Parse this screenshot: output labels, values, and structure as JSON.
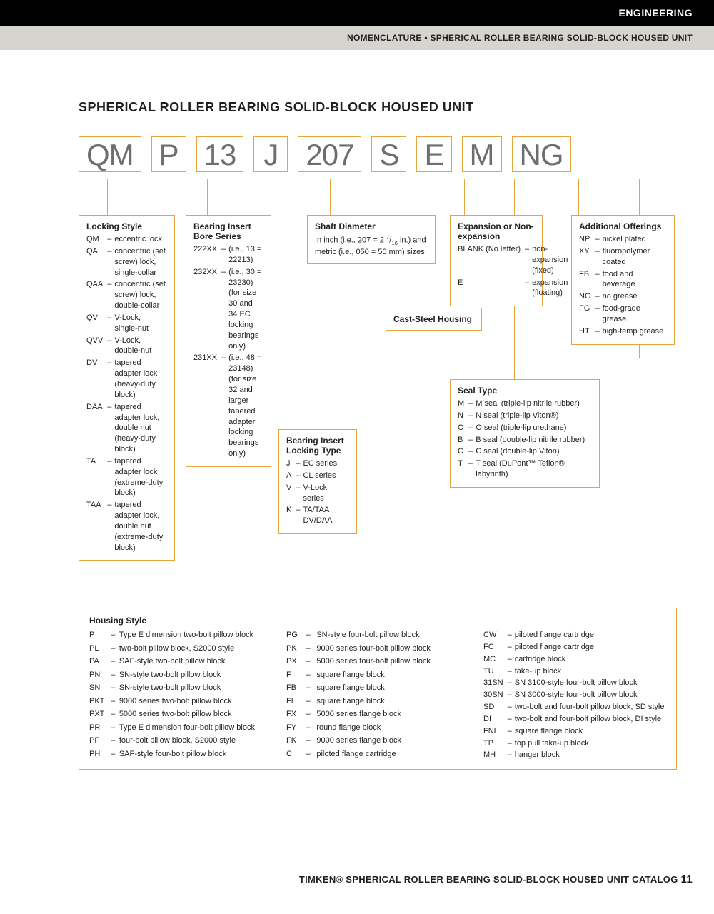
{
  "header": {
    "black_bar": "ENGINEERING",
    "gray_bar": "NOMENCLATURE • SPHERICAL ROLLER BEARING SOLID-BLOCK HOUSED UNIT"
  },
  "title": "SPHERICAL ROLLER BEARING SOLID-BLOCK HOUSED UNIT",
  "codes": [
    "QM",
    "P",
    "13",
    "J",
    "207",
    "S",
    "E",
    "M",
    "NG"
  ],
  "locking_style": {
    "title": "Locking Style",
    "items": [
      {
        "c": "QM",
        "d": "eccentric lock"
      },
      {
        "c": "QA",
        "d": "concentric (set screw) lock, single-collar"
      },
      {
        "c": "QAA",
        "d": "concentric (set screw) lock, double-collar"
      },
      {
        "c": "QV",
        "d": "V-Lock, single-nut"
      },
      {
        "c": "QVV",
        "d": "V-Lock, double-nut"
      },
      {
        "c": "DV",
        "d": "tapered adapter lock (heavy-duty block)"
      },
      {
        "c": "DAA",
        "d": "tapered adapter lock, double nut (heavy-duty block)"
      },
      {
        "c": "TA",
        "d": "tapered adapter lock (extreme-duty block)"
      },
      {
        "c": "TAA",
        "d": "tapered adapter lock, double nut (extreme-duty block)"
      }
    ]
  },
  "bore_series": {
    "title": "Bearing Insert Bore Series",
    "items": [
      {
        "c": "222XX",
        "d": "(i.e., 13 = 22213)"
      },
      {
        "c": "232XX",
        "d": "(i.e., 30 = 23230) (for size 30 and 34 EC locking bearings only)"
      },
      {
        "c": "231XX",
        "d": "(i.e., 48 = 23148) (for size 32 and larger tapered adapter locking bearings only)"
      }
    ]
  },
  "locking_type": {
    "title": "Bearing Insert Locking Type",
    "items": [
      {
        "c": "J",
        "d": "EC series"
      },
      {
        "c": "A",
        "d": "CL series"
      },
      {
        "c": "V",
        "d": "V-Lock series"
      },
      {
        "c": "K",
        "d": "TA/TAA DV/DAA"
      }
    ]
  },
  "shaft_diameter": {
    "title": "Shaft Diameter",
    "text": "In inch (i.e., 207 = 2 7/16 in.) and metric (i.e., 050 = 50 mm) sizes"
  },
  "cast_steel": "Cast-Steel Housing",
  "expansion": {
    "title": "Expansion or Non-expansion",
    "items": [
      {
        "c": "BLANK (No letter)",
        "d": "non-expansion (fixed)"
      },
      {
        "c": "E",
        "d": "expansion (floating)"
      }
    ]
  },
  "seal_type": {
    "title": "Seal Type",
    "items": [
      {
        "c": "M",
        "d": "M seal (triple-lip nitrile rubber)"
      },
      {
        "c": "N",
        "d": "N seal (triple-lip Viton®)"
      },
      {
        "c": "O",
        "d": "O seal (triple-lip urethane)"
      },
      {
        "c": "B",
        "d": "B seal (double-lip nitrile rubber)"
      },
      {
        "c": "C",
        "d": "C seal (double-lip Viton)"
      },
      {
        "c": "T",
        "d": "T seal (DuPont™ Teflon® labyrinth)"
      }
    ]
  },
  "additional": {
    "title": "Additional Offerings",
    "items": [
      {
        "c": "NP",
        "d": "nickel plated"
      },
      {
        "c": "XY",
        "d": "fluoropolymer coated"
      },
      {
        "c": "FB",
        "d": "food and beverage"
      },
      {
        "c": "NG",
        "d": "no grease"
      },
      {
        "c": "FG",
        "d": "food-grade grease"
      },
      {
        "c": "HT",
        "d": "high-temp grease"
      }
    ]
  },
  "housing": {
    "title": "Housing Style",
    "col1": [
      {
        "c": "P",
        "d": "Type E dimension two-bolt pillow block"
      },
      {
        "c": "PL",
        "d": "two-bolt pillow block, S2000 style"
      },
      {
        "c": "PA",
        "d": "SAF-style two-bolt pillow block"
      },
      {
        "c": "PN",
        "d": "SN-style two-bolt pillow block"
      },
      {
        "c": "SN",
        "d": "SN-style two-bolt pillow block"
      },
      {
        "c": "PKT",
        "d": "9000 series two-bolt pillow block"
      },
      {
        "c": "PXT",
        "d": "5000 series two-bolt pillow block"
      },
      {
        "c": "PR",
        "d": "Type E dimension four-bolt pillow block"
      },
      {
        "c": "PF",
        "d": "four-bolt pillow block, S2000 style"
      },
      {
        "c": "PH",
        "d": "SAF-style four-bolt pillow block"
      }
    ],
    "col2": [
      {
        "c": "PG",
        "d": "SN-style four-bolt pillow block"
      },
      {
        "c": "PK",
        "d": "9000 series four-bolt pillow block"
      },
      {
        "c": "PX",
        "d": "5000 series four-bolt pillow block"
      },
      {
        "c": "F",
        "d": "square flange block"
      },
      {
        "c": "FB",
        "d": "square flange block"
      },
      {
        "c": "FL",
        "d": "square flange block"
      },
      {
        "c": "FX",
        "d": "5000 series flange block"
      },
      {
        "c": "FY",
        "d": "round flange block"
      },
      {
        "c": "FK",
        "d": "9000 series flange block"
      },
      {
        "c": "C",
        "d": "piloted flange cartridge"
      }
    ],
    "col3": [
      {
        "c": "CW",
        "d": "piloted flange cartridge"
      },
      {
        "c": "FC",
        "d": "piloted flange cartridge"
      },
      {
        "c": "MC",
        "d": "cartridge block"
      },
      {
        "c": "TU",
        "d": "take-up block"
      },
      {
        "c": "31SN",
        "d": "SN 3100-style four-bolt pillow block"
      },
      {
        "c": "30SN",
        "d": "SN 3000-style four-bolt pillow block"
      },
      {
        "c": "SD",
        "d": "two-bolt and four-bolt pillow block, SD style"
      },
      {
        "c": "DI",
        "d": "two-bolt and four-bolt pillow block, DI style"
      },
      {
        "c": "FNL",
        "d": "square flange block"
      },
      {
        "c": "TP",
        "d": "top pull take-up block"
      },
      {
        "c": "MH",
        "d": "hanger block"
      }
    ]
  },
  "footer": {
    "text": "TIMKEN® SPHERICAL ROLLER BEARING SOLID-BLOCK HOUSED UNIT CATALOG",
    "page": "11"
  },
  "colors": {
    "accent": "#e8a33d",
    "code_text": "#6d6e71",
    "black": "#000000",
    "gray_bar": "#d7d4cf"
  }
}
